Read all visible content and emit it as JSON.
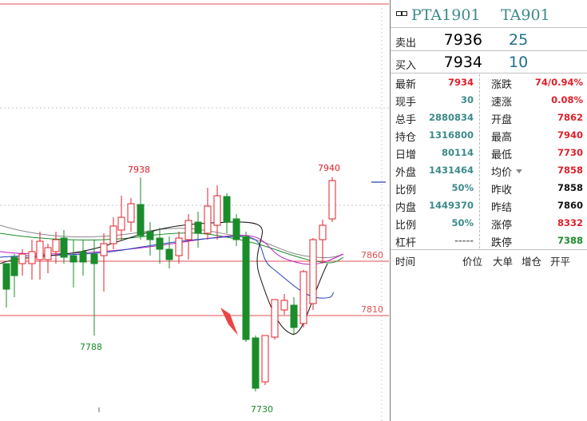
{
  "chart": {
    "price_levels": [
      {
        "value": 7860,
        "label": "7860"
      },
      {
        "value": 7810,
        "label": "7810"
      }
    ],
    "annotations": {
      "high_label": "7938",
      "low_label": "7788",
      "right_high_label": "7940",
      "bottom_low_label": "7730"
    },
    "colors": {
      "up": "#e0202a",
      "down": "#1a8c2a",
      "level": "#e05050"
    }
  },
  "quote": {
    "header": {
      "symbol": "PTA1901",
      "code": "TA901"
    },
    "ask": {
      "label": "卖出",
      "price": "7936",
      "volume": "25"
    },
    "bid": {
      "label": "买入",
      "price": "7934",
      "volume": "10"
    },
    "rows": [
      {
        "l1": "最新",
        "v1": "7934",
        "c1": "red",
        "l2": "涨跌",
        "v2": "74/0.94%",
        "c2": "red"
      },
      {
        "l1": "现手",
        "v1": "30",
        "c1": "teal",
        "l2": "速涨",
        "v2": "0.08%",
        "c2": "red"
      },
      {
        "l1": "总手",
        "v1": "2880834",
        "c1": "teal",
        "l2": "开盘",
        "v2": "7862",
        "c2": "red"
      },
      {
        "l1": "持仓",
        "v1": "1316800",
        "c1": "teal",
        "l2": "最高",
        "v2": "7940",
        "c2": "red"
      },
      {
        "l1": "日增",
        "v1": "80114",
        "c1": "teal",
        "l2": "最低",
        "v2": "7730",
        "c2": "red"
      },
      {
        "l1": "外盘",
        "v1": "1431464",
        "c1": "teal",
        "l2": "均价",
        "v2": "7858",
        "c2": "red"
      },
      {
        "l1": "比例",
        "v1": "50%",
        "c1": "teal",
        "l2": "昨收",
        "v2": "7858",
        "c2": "black"
      },
      {
        "l1": "内盘",
        "v1": "1449370",
        "c1": "teal",
        "l2": "昨结",
        "v2": "7860",
        "c2": "black"
      },
      {
        "l1": "比例",
        "v1": "50%",
        "c1": "teal",
        "l2": "涨停",
        "v2": "8332",
        "c2": "red"
      },
      {
        "l1": "杠杆",
        "v1": "-----",
        "c1": "gray",
        "l2": "跌停",
        "v2": "7388",
        "c2": "green"
      }
    ],
    "columns": {
      "time": "时间",
      "price": "价位",
      "lot": "大单",
      "oi_change": "增仓",
      "open_flat": "开平"
    }
  }
}
